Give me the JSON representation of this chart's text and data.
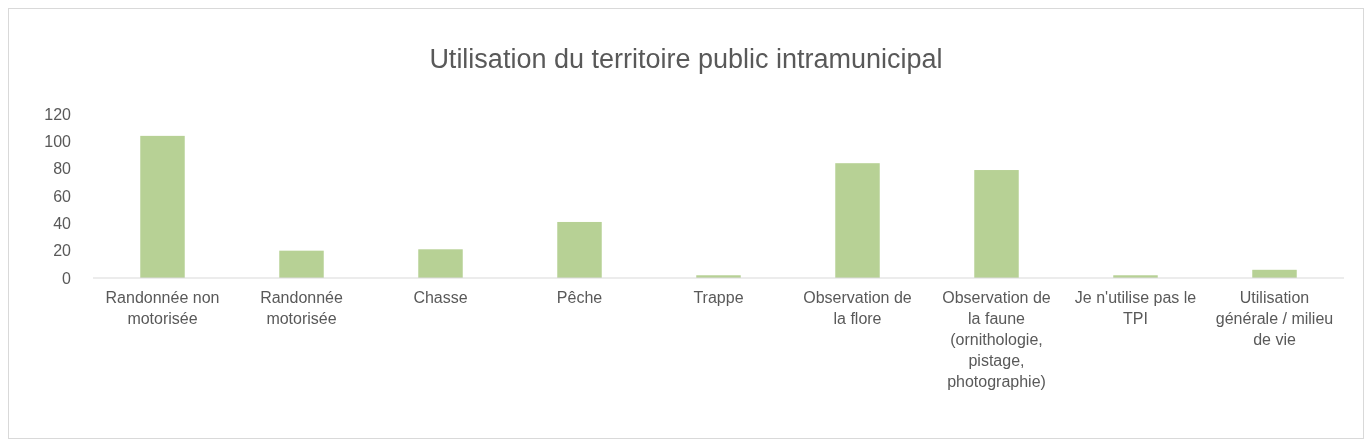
{
  "chart_data": {
    "type": "bar",
    "title": "Utilisation du territoire public intramunicipal",
    "categories": [
      "Randonnée non motorisée",
      "Randonnée motorisée",
      "Chasse",
      "Pêche",
      "Trappe",
      "Observation de la flore",
      "Observation de la faune (ornithologie, pistage, photographie)",
      "Je n'utilise pas le TPI",
      "Utilisation générale / milieu de vie"
    ],
    "values": [
      104,
      20,
      21,
      41,
      2,
      84,
      79,
      2,
      6
    ],
    "color": "#b7d195",
    "ylim": [
      0,
      120
    ],
    "yticks": [
      0,
      20,
      40,
      60,
      80,
      100,
      120
    ],
    "grid": false
  }
}
